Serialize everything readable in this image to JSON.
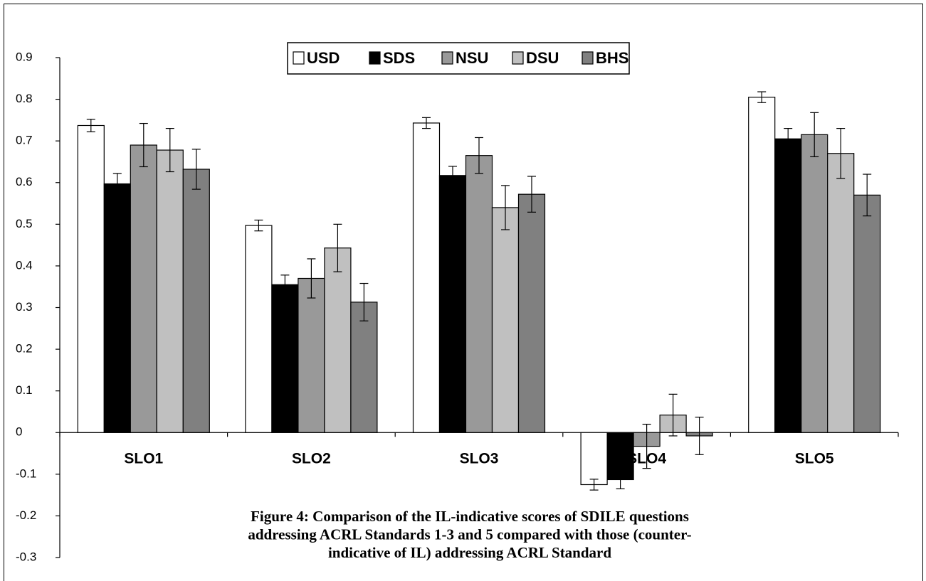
{
  "chart_data": {
    "type": "bar",
    "categories": [
      "SLO1",
      "SLO2",
      "SLO3",
      "SLO4",
      "SLO5"
    ],
    "series": [
      {
        "name": "USD",
        "color": "#ffffff",
        "values": [
          0.737,
          0.497,
          0.743,
          -0.125,
          0.805
        ],
        "errors": [
          0.015,
          0.013,
          0.013,
          0.013,
          0.013
        ]
      },
      {
        "name": "SDS",
        "color": "#000000",
        "values": [
          0.597,
          0.355,
          0.617,
          -0.113,
          0.705
        ],
        "errors": [
          0.025,
          0.023,
          0.022,
          0.022,
          0.025
        ]
      },
      {
        "name": "NSU",
        "color": "#999999",
        "values": [
          0.69,
          0.37,
          0.665,
          -0.033,
          0.715
        ],
        "errors": [
          0.052,
          0.047,
          0.043,
          0.053,
          0.053
        ]
      },
      {
        "name": "DSU",
        "color": "#c0c0c0",
        "values": [
          0.678,
          0.443,
          0.54,
          0.042,
          0.67
        ],
        "errors": [
          0.052,
          0.057,
          0.053,
          0.05,
          0.06
        ]
      },
      {
        "name": "BHS",
        "color": "#808080",
        "values": [
          0.632,
          0.313,
          0.572,
          -0.008,
          0.57
        ],
        "errors": [
          0.048,
          0.045,
          0.043,
          0.045,
          0.05
        ]
      }
    ],
    "ylim": [
      -0.3,
      0.9
    ],
    "yticks": [
      -0.3,
      -0.2,
      -0.1,
      0,
      0.1,
      0.2,
      0.3,
      0.4,
      0.5,
      0.6,
      0.7,
      0.8,
      0.9
    ],
    "legend": "top",
    "caption": [
      "Figure 4:  Comparison of the IL-indicative scores of SDILE questions",
      "addressing ACRL Standards 1-3 and 5 compared with those (counter-",
      "indicative of IL) addressing ACRL Standard"
    ]
  }
}
